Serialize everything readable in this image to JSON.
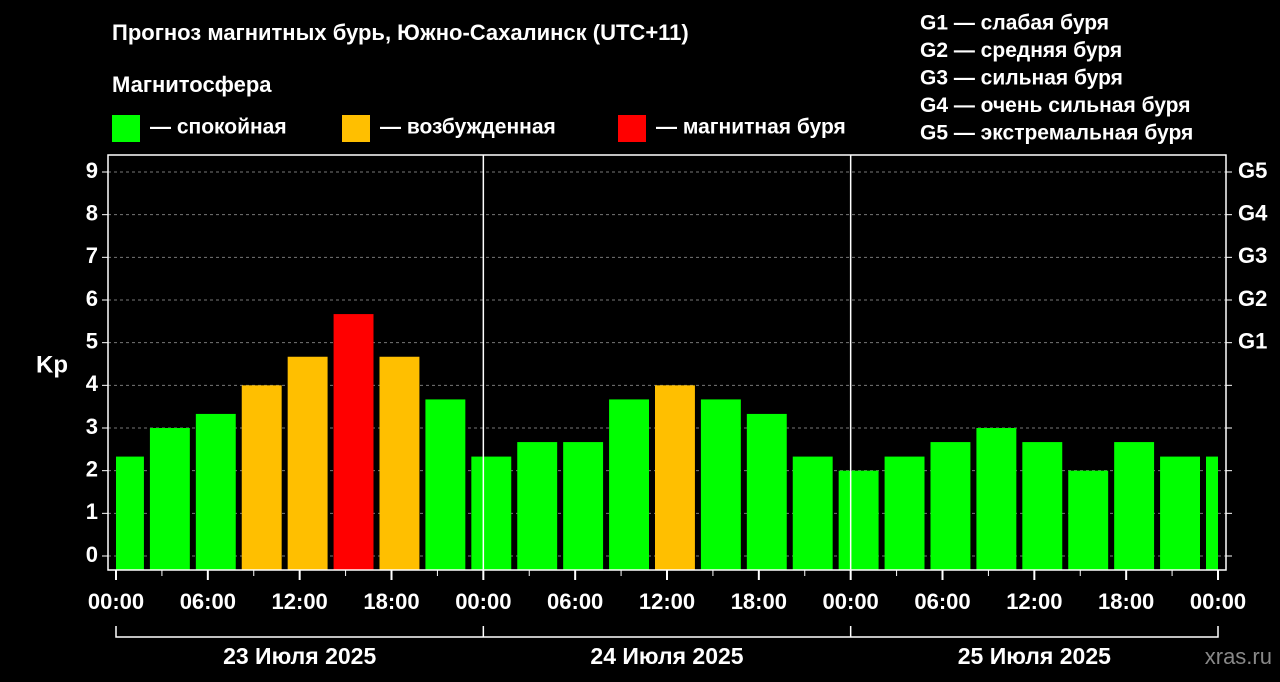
{
  "chart_data": {
    "type": "bar",
    "title": "Прогноз магнитных бурь, Южно-Сахалинск (UTC+11)",
    "legend_title": "Магнитосфера",
    "legend": [
      {
        "name": "— спокойная",
        "color": "#00ff00"
      },
      {
        "name": "— возбужденная",
        "color": "#ffbf00"
      },
      {
        "name": "— магнитная буря",
        "color": "#ff0000"
      }
    ],
    "storm_levels": [
      "G1 — слабая буря",
      "G2 — средняя буря",
      "G3 — сильная буря",
      "G4 — очень сильная буря",
      "G5 — экстремальная буря"
    ],
    "ylabel": "Kp",
    "x": [
      0,
      3,
      6,
      9,
      12,
      15,
      18,
      21,
      24,
      27,
      30,
      33,
      36,
      39,
      42,
      45,
      48,
      51,
      54,
      57,
      60,
      63,
      66,
      69,
      72
    ],
    "values": [
      2.33,
      3,
      3.33,
      4,
      4.67,
      5.67,
      4.67,
      3.67,
      2.33,
      2.67,
      2.67,
      3.67,
      4,
      3.67,
      3.33,
      2.33,
      2,
      2.33,
      2.67,
      3,
      2.67,
      2,
      2.67,
      2.33,
      2.33
    ],
    "bar_colors": [
      "#00ff00",
      "#00ff00",
      "#00ff00",
      "#ffbf00",
      "#ffbf00",
      "#ff0000",
      "#ffbf00",
      "#00ff00",
      "#00ff00",
      "#00ff00",
      "#00ff00",
      "#00ff00",
      "#ffbf00",
      "#00ff00",
      "#00ff00",
      "#00ff00",
      "#00ff00",
      "#00ff00",
      "#00ff00",
      "#00ff00",
      "#00ff00",
      "#00ff00",
      "#00ff00",
      "#00ff00",
      "#00ff00"
    ],
    "xlim": [
      0,
      72
    ],
    "xticks": [
      {
        "value": 0,
        "label": "00:00"
      },
      {
        "value": 6,
        "label": "06:00"
      },
      {
        "value": 12,
        "label": "12:00"
      },
      {
        "value": 18,
        "label": "18:00"
      },
      {
        "value": 24,
        "label": "00:00"
      },
      {
        "value": 30,
        "label": "06:00"
      },
      {
        "value": 36,
        "label": "12:00"
      },
      {
        "value": 42,
        "label": "18:00"
      },
      {
        "value": 48,
        "label": "00:00"
      },
      {
        "value": 54,
        "label": "06:00"
      },
      {
        "value": 60,
        "label": "12:00"
      },
      {
        "value": 66,
        "label": "18:00"
      },
      {
        "value": 72,
        "label": "00:00"
      }
    ],
    "days": [
      "23 Июля 2025",
      "24 Июля 2025",
      "25 Июля 2025"
    ],
    "ylim": [
      0,
      9
    ],
    "yticks": [
      0,
      1,
      2,
      3,
      4,
      5,
      6,
      7,
      8,
      9
    ],
    "y2lim": [
      0,
      9
    ],
    "y2ticks": [
      {
        "value": 5,
        "label": "G1"
      },
      {
        "value": 6,
        "label": "G2"
      },
      {
        "value": 7,
        "label": "G3"
      },
      {
        "value": 8,
        "label": "G4"
      },
      {
        "value": 9,
        "label": "G5"
      }
    ],
    "grid": true,
    "watermark": "xras.ru"
  }
}
